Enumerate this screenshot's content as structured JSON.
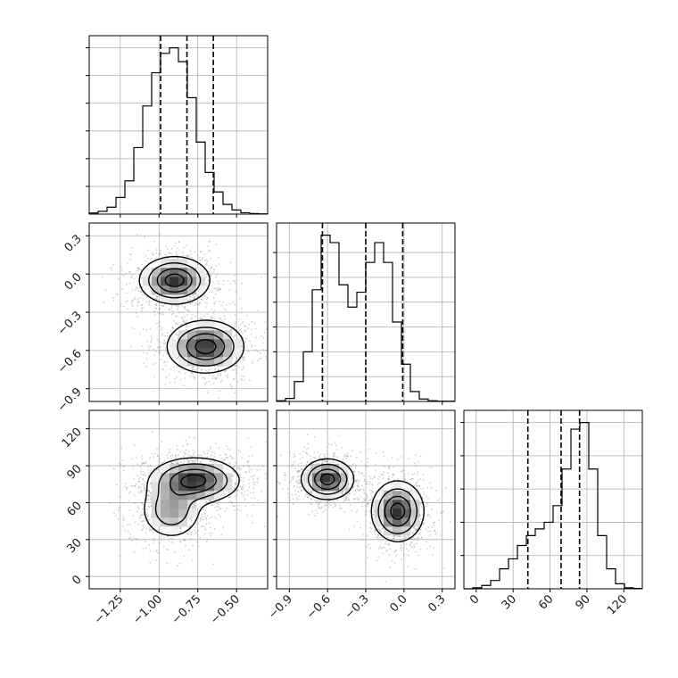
{
  "chart_data": {
    "type": "corner",
    "parameters": [
      {
        "range": [
          -1.45,
          -0.3
        ],
        "ticks": [
          -1.25,
          -1.0,
          -0.75,
          -0.5
        ],
        "tick_labels": [
          "−1.25",
          "−1.00",
          "−0.75",
          "−0.50"
        ],
        "quantiles": [
          -0.99,
          -0.82,
          -0.65
        ],
        "histogram": {
          "edges_start": -1.45,
          "bin_width": 0.0575,
          "counts": [
            0.4,
            1,
            2.5,
            6,
            12,
            24,
            39,
            51,
            58,
            60,
            55,
            42,
            26,
            15,
            8,
            3.5,
            1.5,
            0.5,
            0.2,
            0.1
          ]
        }
      },
      {
        "range": [
          -1.0,
          0.4
        ],
        "ticks": [
          -0.9,
          -0.6,
          -0.3,
          0.0,
          0.3
        ],
        "tick_labels": [
          "−0.9",
          "−0.6",
          "−0.3",
          "0.0",
          "0.3"
        ],
        "quantiles": [
          -0.64,
          -0.3,
          -0.01
        ],
        "histogram": {
          "edges_start": -1.0,
          "bin_width": 0.07,
          "counts": [
            0.3,
            1.2,
            8,
            20,
            45,
            67,
            64,
            47,
            38,
            44,
            56,
            64,
            56,
            32,
            15,
            4,
            1,
            0.3,
            0.1,
            0.1
          ]
        }
      },
      {
        "range": [
          -10,
          135
        ],
        "ticks": [
          0,
          30,
          60,
          90,
          120
        ],
        "tick_labels": [
          "0",
          "30",
          "60",
          "90",
          "120"
        ],
        "quantiles": [
          42,
          69,
          84
        ],
        "histogram": {
          "edges_start": -10,
          "bin_width": 7.25,
          "counts": [
            0,
            0.3,
            1,
            2.5,
            6,
            9,
            13,
            16,
            18,
            20,
            25,
            36,
            48,
            50,
            36,
            16,
            6,
            1.5,
            0.3,
            0.1
          ]
        }
      }
    ],
    "density_panels": [
      {
        "x_param": 0,
        "y_param": 1,
        "components": [
          {
            "mean": [
              -0.9,
              -0.05
            ],
            "sd": [
              0.11,
              0.09
            ],
            "weight": 0.5
          },
          {
            "mean": [
              -0.7,
              -0.57
            ],
            "sd": [
              0.12,
              0.1
            ],
            "weight": 0.5
          }
        ],
        "contour_centers": [
          [
            -0.93,
            -0.05
          ],
          [
            -0.69,
            -0.56
          ]
        ]
      },
      {
        "x_param": 0,
        "y_param": 2,
        "components": [
          {
            "mean": [
              -0.77,
              78
            ],
            "sd": [
              0.14,
              9
            ],
            "weight": 0.65
          },
          {
            "mean": [
              -0.92,
              54
            ],
            "sd": [
              0.1,
              12
            ],
            "weight": 0.35
          }
        ],
        "contour_centers": [
          [
            -0.73,
            79
          ],
          [
            -0.93,
            54
          ]
        ]
      },
      {
        "x_param": 1,
        "y_param": 2,
        "components": [
          {
            "mean": [
              -0.6,
              79
            ],
            "sd": [
              0.1,
              8
            ],
            "weight": 0.5
          },
          {
            "mean": [
              -0.05,
              53
            ],
            "sd": [
              0.1,
              12
            ],
            "weight": 0.5
          }
        ],
        "contour_centers": [
          [
            -0.61,
            79
          ],
          [
            -0.02,
            55
          ]
        ]
      }
    ],
    "grid": true,
    "histogram_y_ticks_unlabeled": true
  }
}
